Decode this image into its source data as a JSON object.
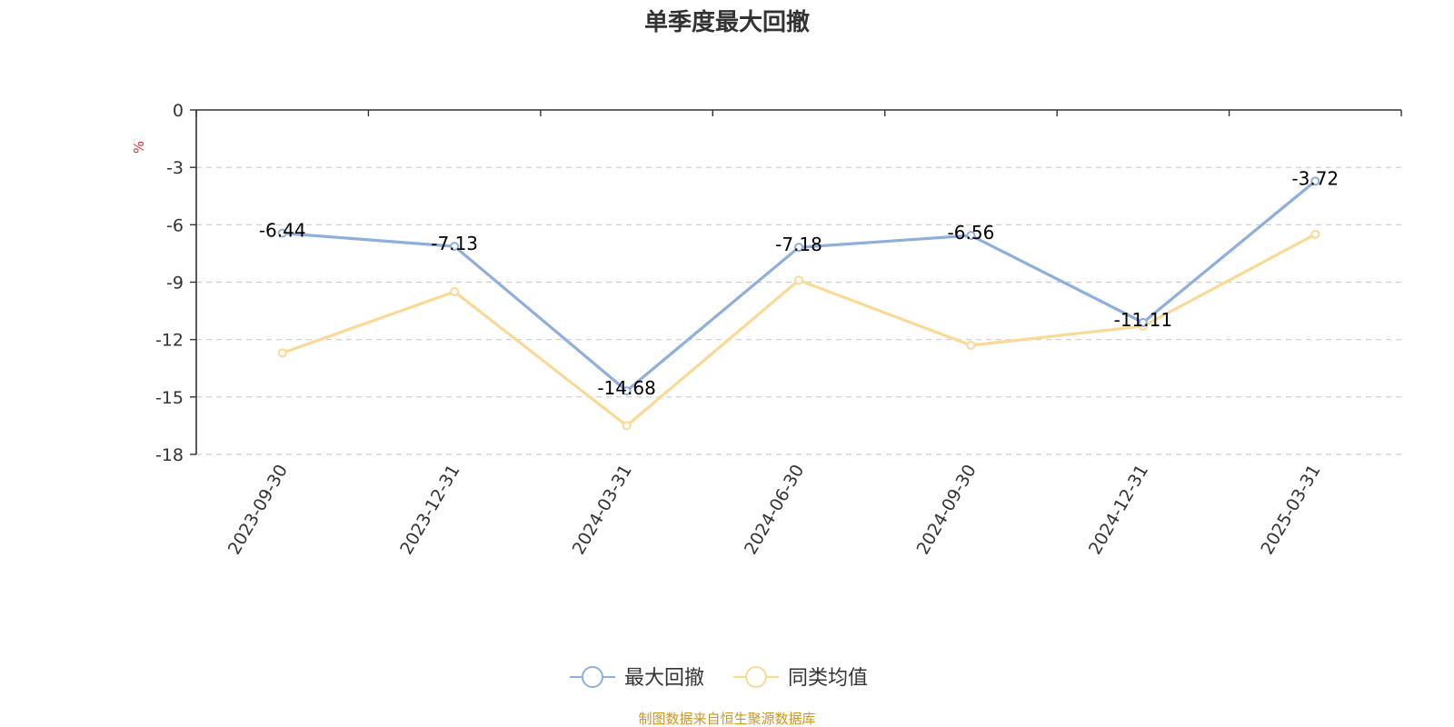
{
  "chart_data": {
    "type": "line",
    "title": "单季度最大回撤",
    "ylabel": "%",
    "xlabel": "",
    "categories": [
      "2023-09-30",
      "2023-12-31",
      "2024-03-31",
      "2024-06-30",
      "2024-09-30",
      "2024-12-31",
      "2025-03-31"
    ],
    "ylim": [
      -18,
      0
    ],
    "yticks": [
      0,
      -3,
      -6,
      -9,
      -12,
      -15,
      -18
    ],
    "grid": true,
    "legend_position": "bottom",
    "series": [
      {
        "name": "最大回撤",
        "color": "#8eaedb",
        "values": [
          -6.44,
          -7.13,
          -14.68,
          -7.18,
          -6.56,
          -11.11,
          -3.72
        ],
        "labels": [
          "-6.44",
          "-7.13",
          "-14.68",
          "-7.18",
          "-6.56",
          "-11.11",
          "-3.72"
        ]
      },
      {
        "name": "同类均值",
        "color": "#fad997",
        "values": [
          -12.7,
          -9.5,
          -16.5,
          -8.9,
          -12.3,
          -11.3,
          -6.5
        ]
      }
    ],
    "source": "制图数据来自恒生聚源数据库"
  }
}
